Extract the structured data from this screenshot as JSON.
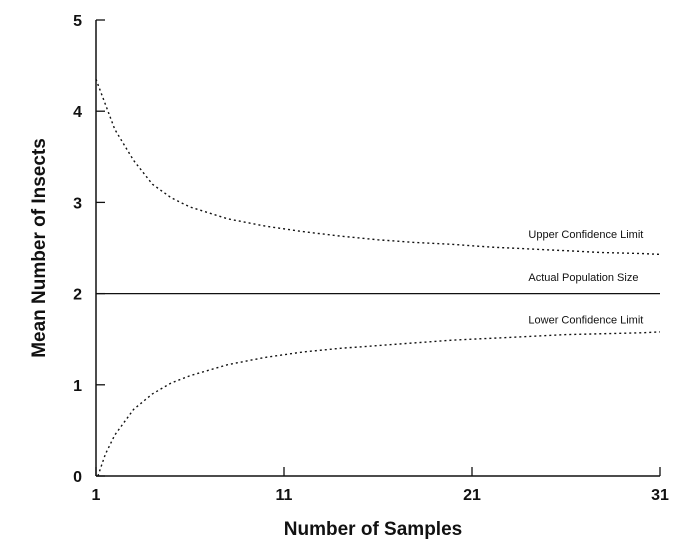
{
  "chart_data": {
    "type": "line",
    "title": "",
    "xlabel": "Number of Samples",
    "ylabel": "Mean Number of Insects",
    "xlim": [
      1,
      31
    ],
    "ylim": [
      0,
      5
    ],
    "xticks": [
      1,
      11,
      21,
      31
    ],
    "yticks": [
      0,
      1,
      2,
      3,
      4,
      5
    ],
    "grid": false,
    "legend": "none",
    "series": [
      {
        "style": "dotted",
        "x": [
          1,
          2,
          3,
          4,
          5,
          6,
          8,
          10,
          12,
          14,
          16,
          18,
          20,
          22,
          24,
          26,
          28,
          30,
          31
        ],
        "y": [
          4.35,
          3.8,
          3.46,
          3.2,
          3.05,
          2.95,
          2.82,
          2.74,
          2.68,
          2.63,
          2.59,
          2.56,
          2.54,
          2.51,
          2.49,
          2.47,
          2.45,
          2.44,
          2.43
        ]
      },
      {
        "style": "solid",
        "x": [
          1,
          31
        ],
        "y": [
          2.0,
          2.0
        ]
      },
      {
        "style": "dotted",
        "x": [
          1.1,
          1.5,
          2,
          3,
          4,
          5,
          6,
          8,
          10,
          12,
          14,
          16,
          18,
          20,
          22,
          24,
          26,
          28,
          30,
          31
        ],
        "y": [
          0.0,
          0.24,
          0.45,
          0.73,
          0.9,
          1.02,
          1.1,
          1.22,
          1.3,
          1.36,
          1.4,
          1.43,
          1.46,
          1.49,
          1.51,
          1.53,
          1.55,
          1.56,
          1.57,
          1.58
        ]
      }
    ],
    "annotations": [
      {
        "text": "Upper Confidence Limit",
        "x": 24,
        "y": 2.61
      },
      {
        "text": "Actual Population Size",
        "x": 24,
        "y": 2.14
      },
      {
        "text": "Lower Confidence Limit",
        "x": 24,
        "y": 1.67
      }
    ]
  }
}
